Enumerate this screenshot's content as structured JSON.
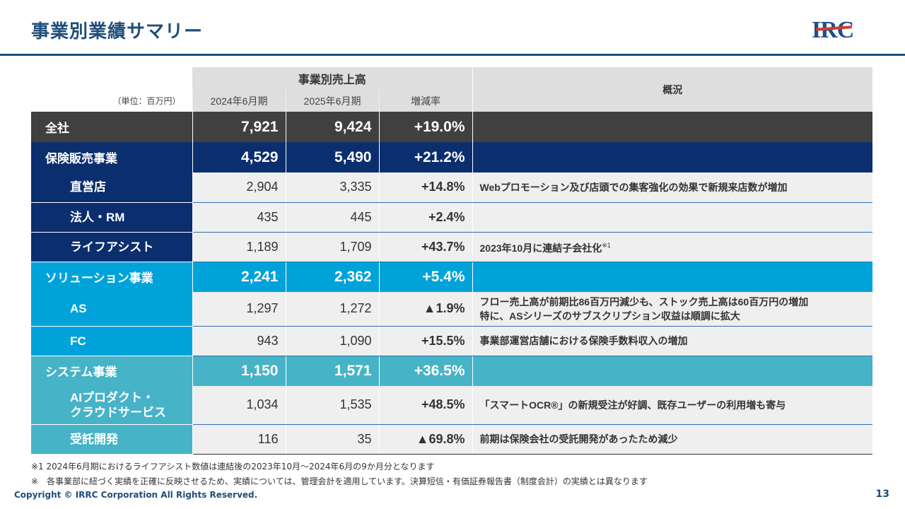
{
  "header": {
    "title": "事業別業績サマリー",
    "logo_text": "IRC"
  },
  "table": {
    "group_header": "事業別売上高",
    "unit_label": "（単位：百万円）",
    "columns": [
      "2024年6月期",
      "2025年6月期",
      "増減率"
    ],
    "overview_header": "概況",
    "rows": [
      {
        "name": "全社",
        "v2024": "7,921",
        "v2025": "9,424",
        "rate": "+19.0%",
        "desc": ""
      },
      {
        "name": "保険販売事業",
        "v2024": "4,529",
        "v2025": "5,490",
        "rate": "+21.2%",
        "desc": ""
      },
      {
        "name": "直営店",
        "v2024": "2,904",
        "v2025": "3,335",
        "rate": "+14.8%",
        "desc": "Webプロモーション及び店頭での集客強化の効果で新規来店数が増加"
      },
      {
        "name": "法人・RM",
        "v2024": "435",
        "v2025": "445",
        "rate": "+2.4%",
        "desc": ""
      },
      {
        "name": "ライフアシスト",
        "v2024": "1,189",
        "v2025": "1,709",
        "rate": "+43.7%",
        "desc": "2023年10月に連結子会社化",
        "desc_note": "※1"
      },
      {
        "name": "ソリューション事業",
        "v2024": "2,241",
        "v2025": "2,362",
        "rate": "+5.4%",
        "desc": ""
      },
      {
        "name": "AS",
        "v2024": "1,297",
        "v2025": "1,272",
        "rate": "▲1.9%",
        "desc": "フロー売上高が前期比86百万円減少も、ストック売上高は60百万円の増加",
        "desc2": "特に、ASシリーズのサブスクリプション収益は順調に拡大"
      },
      {
        "name": "FC",
        "v2024": "943",
        "v2025": "1,090",
        "rate": "+15.5%",
        "desc": "事業部運営店舗における保険手数料収入の増加"
      },
      {
        "name": "システム事業",
        "v2024": "1,150",
        "v2025": "1,571",
        "rate": "+36.5%",
        "desc": ""
      },
      {
        "name": "AIプロダクト・",
        "name2": "クラウドサービス",
        "v2024": "1,034",
        "v2025": "1,535",
        "rate": "+48.5%",
        "desc": "「スマートOCR®」の新規受注が好調、既存ユーザーの利用増も寄与"
      },
      {
        "name": "受託開発",
        "v2024": "116",
        "v2025": "35",
        "rate": "▲69.8%",
        "desc": "前期は保険会社の受託開発があったため減少"
      }
    ]
  },
  "footnotes": [
    "※1 2024年6月期におけるライフアシスト数値は連結後の2023年10月～2024年6月の9か月分となります",
    "※　各事業部に紐づく実績を正確に反映させるため、実績については、管理会計を適用しています。決算短信・有価証券報告書（制度会計）の実績とは異なります"
  ],
  "footer": {
    "copyright": "Copyright © IRRC Corporation All Rights Reserved.",
    "page_number": "13"
  },
  "colors": {
    "title": "#1f4e7a",
    "total": "#404040",
    "insurance": "#0b2e6e",
    "solution": "#00a3d9",
    "system": "#47b3c7",
    "logo_arc": "#d63a2f"
  }
}
